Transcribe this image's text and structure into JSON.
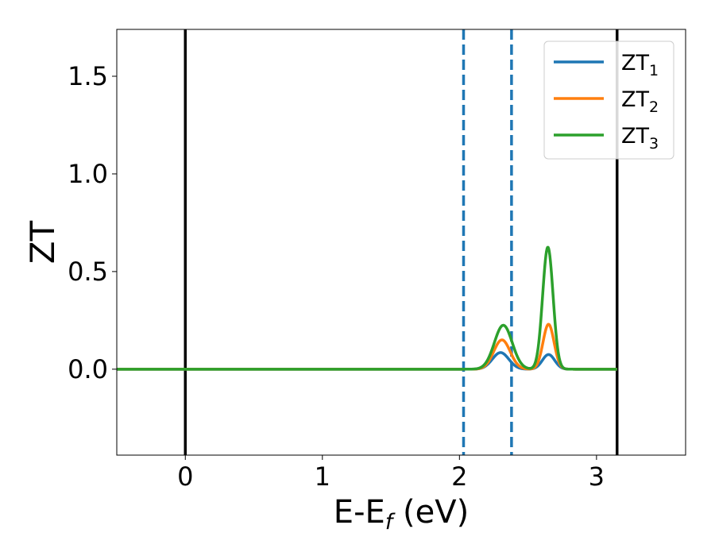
{
  "chart_data": {
    "type": "line",
    "ylabel": "ZT",
    "xlabel": {
      "main": "E-E",
      "sub": "f",
      "unit": " (eV)"
    },
    "xlim": [
      -0.5,
      3.65
    ],
    "ylim": [
      -0.44,
      1.74
    ],
    "x_ticks": [
      0,
      1,
      2,
      3
    ],
    "y_ticks": [
      0.0,
      0.5,
      1.0,
      1.5
    ],
    "x_tick_labels": [
      "0",
      "1",
      "2",
      "3"
    ],
    "y_tick_labels": [
      "0.0",
      "0.5",
      "1.0",
      "1.5"
    ],
    "grid": false,
    "legend_position": "top-right",
    "vertical_lines_solid": [
      0,
      3.15
    ],
    "vertical_lines_dashed": [
      2.03,
      2.38
    ],
    "dashed_color": "#1f77b4",
    "x_range": [
      -0.5,
      3.15
    ],
    "series": [
      {
        "name": "ZT",
        "name_sub": "1",
        "color": "#1f77b4",
        "peaks": [
          {
            "center": 2.3,
            "height": 0.085,
            "width": 0.06
          },
          {
            "center": 2.65,
            "height": 0.075,
            "width": 0.045
          }
        ]
      },
      {
        "name": "ZT",
        "name_sub": "2",
        "color": "#ff7f0e",
        "peaks": [
          {
            "center": 2.31,
            "height": 0.15,
            "width": 0.06
          },
          {
            "center": 2.65,
            "height": 0.23,
            "width": 0.04
          }
        ]
      },
      {
        "name": "ZT",
        "name_sub": "3",
        "color": "#2ca02c",
        "peaks": [
          {
            "center": 2.32,
            "height": 0.225,
            "width": 0.065
          },
          {
            "center": 2.645,
            "height": 0.625,
            "width": 0.038
          }
        ]
      }
    ]
  }
}
